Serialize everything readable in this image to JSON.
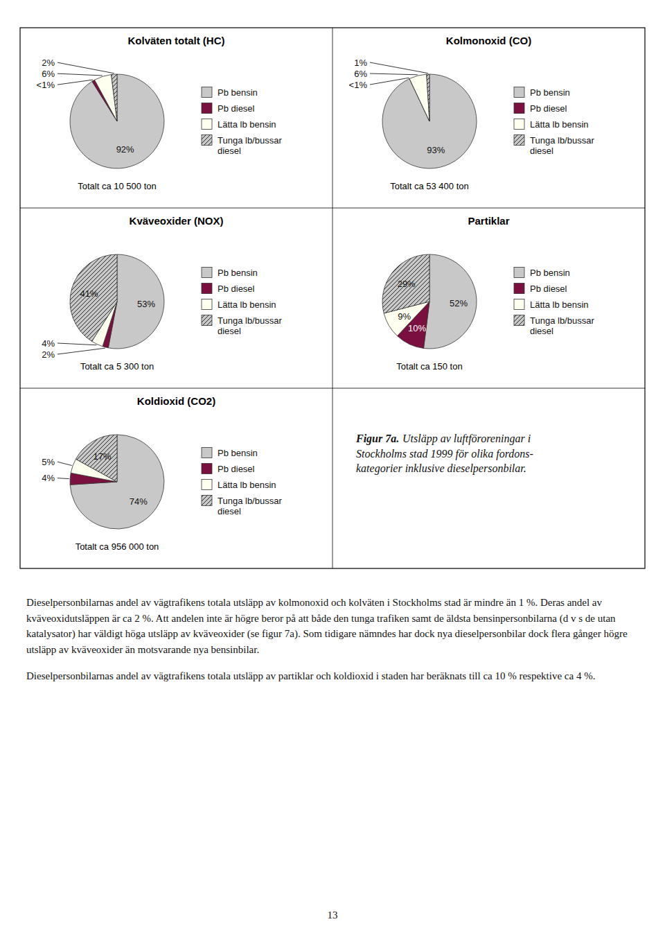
{
  "chart_data": [
    {
      "type": "pie",
      "title": "Kolväten totalt (HC)",
      "subtitle": "Totalt ca 10 500 ton",
      "categories": [
        "Pb bensin",
        "Pb diesel",
        "Lätta lb bensin",
        "Tunga lb/bussar\ndiesel"
      ],
      "values": [
        92,
        1,
        6,
        2
      ],
      "value_labels": [
        "92%",
        "<1%",
        "6%",
        "2%"
      ],
      "colors": [
        "#c8c8c8",
        "#7b1040",
        "#fffff0",
        "#c8c8c8"
      ],
      "data_labels": true,
      "legend": "right"
    },
    {
      "type": "pie",
      "title": "Kolmonoxid (CO)",
      "subtitle": "Totalt ca 53 400 ton",
      "categories": [
        "Pb bensin",
        "Pb diesel",
        "Lätta lb bensin",
        "Tunga lb/bussar\ndiesel"
      ],
      "values": [
        93,
        0,
        6,
        1
      ],
      "value_labels": [
        "93%",
        "<1%",
        "6%",
        "1%"
      ],
      "colors": [
        "#c8c8c8",
        "#7b1040",
        "#fffff0",
        "#c8c8c8"
      ],
      "data_labels": true,
      "legend": "right"
    },
    {
      "type": "pie",
      "title": "Kväveoxider (NOX)",
      "subtitle": "Totalt ca 5 300 ton",
      "categories": [
        "Pb bensin",
        "Pb diesel",
        "Lätta lb bensin",
        "Tunga lb/bussar\ndiesel"
      ],
      "values": [
        53,
        2,
        4,
        41
      ],
      "value_labels": [
        "53%",
        "2%",
        "4%",
        "41%"
      ],
      "colors": [
        "#c8c8c8",
        "#7b1040",
        "#fffff0",
        "#c8c8c8"
      ],
      "data_labels": true,
      "legend": "right"
    },
    {
      "type": "pie",
      "title": "Partiklar",
      "subtitle": "Totalt ca 150 ton",
      "categories": [
        "Pb bensin",
        "Pb diesel",
        "Lätta lb bensin",
        "Tunga lb/bussar\ndiesel"
      ],
      "values": [
        52,
        10,
        9,
        29
      ],
      "value_labels": [
        "52%",
        "10%",
        "9%",
        "29%"
      ],
      "colors": [
        "#c8c8c8",
        "#7b1040",
        "#fffff0",
        "#c8c8c8"
      ],
      "data_labels": true,
      "legend": "right"
    },
    {
      "type": "pie",
      "title": "Koldioxid (CO2)",
      "subtitle": "Totalt ca 956 000 ton",
      "categories": [
        "Pb bensin",
        "Pb diesel",
        "Lätta lb bensin",
        "Tunga lb/bussar\ndiesel"
      ],
      "values": [
        74,
        4,
        5,
        17
      ],
      "value_labels": [
        "74%",
        "4%",
        "5%",
        "17%"
      ],
      "colors": [
        "#c8c8c8",
        "#7b1040",
        "#fffff0",
        "#c8c8c8"
      ],
      "data_labels": true,
      "legend": "right"
    }
  ],
  "caption_label": "Figur 7a.",
  "caption": "Utsläpp av luftföroreningar i\nStockholms stad 1999 för olika fordons-\nkategorier inklusive dieselpersonbilar.",
  "body_text": [
    "Dieselpersonbilarnas andel av vägtrafikens totala utsläpp av kolmonoxid och kolväten i Stockholms stad är mindre än 1 %. Deras andel av kväveoxidutsläppen är ca 2 %. Att andelen inte är högre beror på att både den tunga trafiken samt de äldsta bensinpersonbilarna (d v s de utan katalysator) har väldigt höga utsläpp av kväveoxider (se figur 7a). Som tidigare nämndes har dock nya dieselpersonbilar dock flera gånger högre utsläpp av kväveoxider än motsvarande nya bensinbilar.",
    "Dieselpersonbilarnas andel av vägtrafikens totala utsläpp av partiklar och koldioxid i staden har beräknats till ca 10 % respektive ca 4 %."
  ],
  "page_number": "13"
}
